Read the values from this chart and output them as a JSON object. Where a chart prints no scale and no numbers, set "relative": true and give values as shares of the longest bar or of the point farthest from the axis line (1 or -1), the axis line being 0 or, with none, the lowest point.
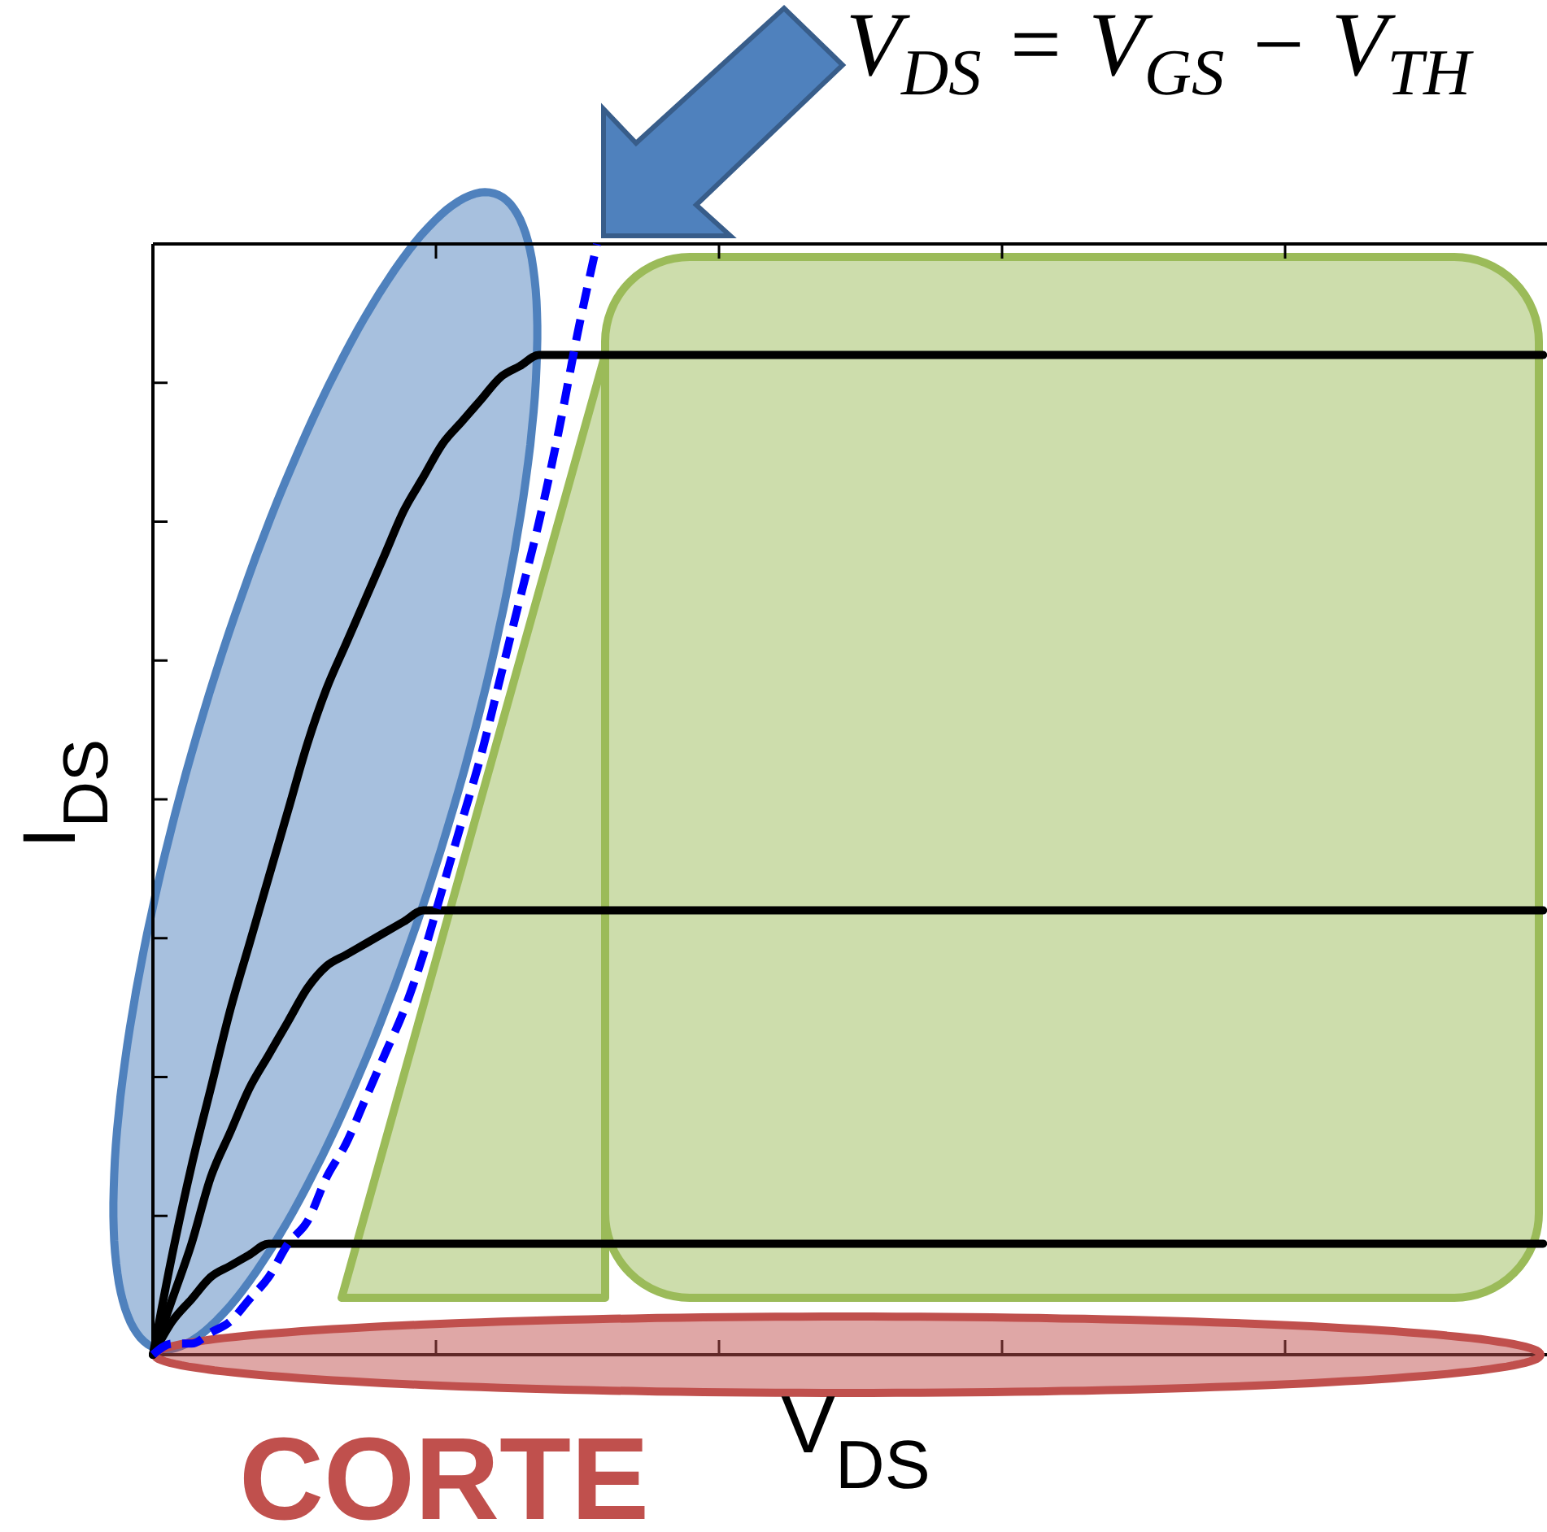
{
  "chart_data": {
    "type": "line",
    "relative": true,
    "xlabel": "V$_{DS}$",
    "ylabel": "I$_{DS}$",
    "categories": [
      null,
      null,
      null,
      null,
      null,
      null,
      null,
      null,
      null,
      null,
      null,
      null,
      null,
      null,
      null,
      null,
      null,
      null,
      null,
      null,
      null,
      null,
      null,
      null,
      null,
      null,
      null,
      null,
      null,
      null,
      null,
      null,
      null,
      null,
      null,
      null,
      null,
      null,
      null,
      null,
      null,
      null,
      null,
      null,
      null,
      null,
      null,
      null,
      null,
      null,
      null,
      null,
      null,
      null,
      null,
      null,
      null,
      null,
      null,
      null,
      null,
      null,
      null,
      null,
      null,
      null,
      null,
      null,
      null,
      null,
      null,
      null,
      null
    ],
    "series": [
      {
        "color": "#000000",
        "values": [
          0,
          0.09,
          0.17,
          0.24,
          0.31,
          0.37,
          0.43,
          0.49,
          0.55,
          0.6,
          0.64,
          0.68,
          0.72,
          0.76,
          0.79,
          0.82,
          0.84,
          0.86,
          0.88,
          0.89,
          0.9,
          0.9,
          0.9,
          0.9,
          0.9,
          0.9,
          0.9,
          0.9,
          0.9,
          0.9,
          0.9,
          0.9,
          0.9,
          0.9,
          0.9,
          0.9,
          0.9,
          0.9,
          0.9,
          0.9,
          0.9,
          0.9,
          0.9,
          0.9,
          0.9,
          0.9,
          0.9,
          0.9,
          0.9,
          0.9,
          0.9,
          0.9,
          0.9,
          0.9,
          0.9,
          0.9,
          0.9,
          0.9,
          0.9,
          0.9,
          0.9,
          0.9,
          0.9,
          0.9,
          0.9,
          0.9,
          0.9,
          0.9,
          0.9,
          0.9,
          0.9,
          0.9,
          0.9
        ]
      },
      {
        "color": "#000000",
        "values": [
          0,
          0.05,
          0.1,
          0.16,
          0.2,
          0.24,
          0.27,
          0.3,
          0.33,
          0.35,
          0.36,
          0.37,
          0.38,
          0.39,
          0.4,
          0.4,
          0.4,
          0.4,
          0.4,
          0.4,
          0.4,
          0.4,
          0.4,
          0.4,
          0.4,
          0.4,
          0.4,
          0.4,
          0.4,
          0.4,
          0.4,
          0.4,
          0.4,
          0.4,
          0.4,
          0.4,
          0.4,
          0.4,
          0.4,
          0.4,
          0.4,
          0.4,
          0.4,
          0.4,
          0.4,
          0.4,
          0.4,
          0.4,
          0.4,
          0.4,
          0.4,
          0.4,
          0.4,
          0.4,
          0.4,
          0.4,
          0.4,
          0.4,
          0.4,
          0.4,
          0.4,
          0.4,
          0.4,
          0.4,
          0.4,
          0.4,
          0.4,
          0.4,
          0.4,
          0.4,
          0.4,
          0.4,
          0.4
        ]
      },
      {
        "color": "#000000",
        "values": [
          0,
          0.03,
          0.05,
          0.07,
          0.08,
          0.09,
          0.1,
          0.1,
          0.1,
          0.1,
          0.1,
          0.1,
          0.1,
          0.1,
          0.1,
          0.1,
          0.1,
          0.1,
          0.1,
          0.1,
          0.1,
          0.1,
          0.1,
          0.1,
          0.1,
          0.1,
          0.1,
          0.1,
          0.1,
          0.1,
          0.1,
          0.1,
          0.1,
          0.1,
          0.1,
          0.1,
          0.1,
          0.1,
          0.1,
          0.1,
          0.1,
          0.1,
          0.1,
          0.1,
          0.1,
          0.1,
          0.1,
          0.1,
          0.1,
          0.1,
          0.1,
          0.1,
          0.1,
          0.1,
          0.1,
          0.1,
          0.1,
          0.1,
          0.1,
          0.1,
          0.1,
          0.1,
          0.1,
          0.1,
          0.1,
          0.1,
          0.1,
          0.1,
          0.1,
          0.1,
          0.1,
          0.1,
          0.1
        ]
      },
      {
        "color": "#0000ff",
        "line_style": "dashed",
        "values": [
          0,
          0.01,
          0.01,
          0.02,
          0.03,
          0.05,
          0.07,
          0.1,
          0.12,
          0.16,
          0.19,
          0.23,
          0.27,
          0.31,
          0.36,
          0.42,
          0.48,
          0.54,
          0.61,
          0.68,
          0.75,
          0.83,
          0.92,
          1,
          null,
          null,
          null,
          null,
          null,
          null,
          null,
          null,
          null,
          null,
          null,
          null,
          null,
          null,
          null,
          null,
          null,
          null,
          null,
          null,
          null,
          null,
          null,
          null,
          null,
          null,
          null,
          null,
          null,
          null,
          null,
          null,
          null,
          null,
          null,
          null,
          null,
          null,
          null,
          null,
          null,
          null,
          null,
          null,
          null,
          null,
          null,
          null,
          null
        ]
      }
    ],
    "annotations": [
      "V$_{DS}$ = V$_{GS}$ − V$_{TH}$",
      "CORTE"
    ]
  }
}
